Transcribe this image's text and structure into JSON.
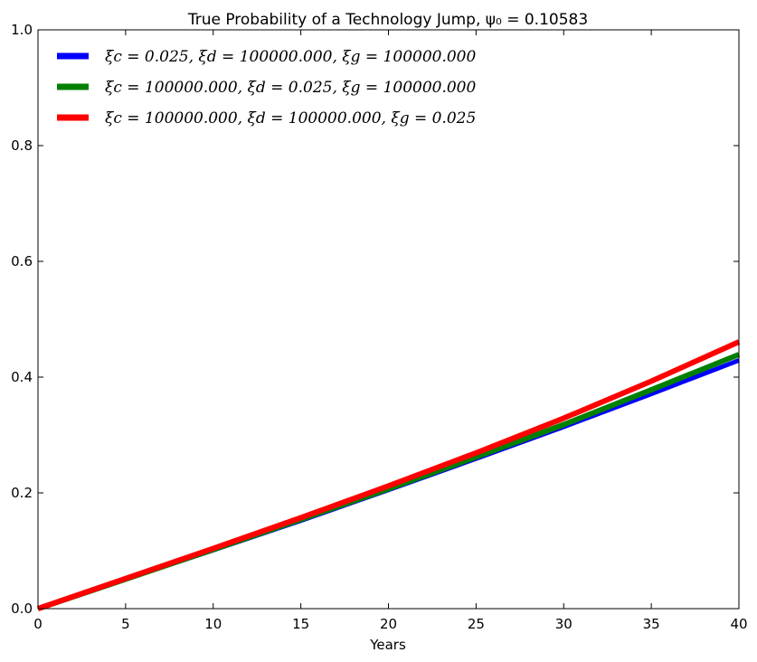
{
  "chart_data": {
    "type": "line",
    "title": "True Probability of a Technology Jump, ψ₀ = 0.10583",
    "xlabel": "Years",
    "ylabel": "",
    "xlim": [
      0,
      40
    ],
    "ylim": [
      0,
      1.0
    ],
    "xticks": [
      "0",
      "5",
      "10",
      "15",
      "20",
      "25",
      "30",
      "35",
      "40"
    ],
    "yticks": [
      "0.0",
      "0.2",
      "0.4",
      "0.6",
      "0.8",
      "1.0"
    ],
    "grid": false,
    "legend_position": "top-left",
    "x": [
      0,
      5,
      10,
      15,
      20,
      25,
      30,
      35,
      40
    ],
    "series": [
      {
        "name": "ξc = 0.025, ξd = 100000.000, ξg = 100000.000",
        "color": "#0000ff",
        "values": [
          0.0,
          0.051,
          0.101,
          0.152,
          0.205,
          0.259,
          0.314,
          0.371,
          0.429
        ]
      },
      {
        "name": "ξc = 100000.000, ξd = 0.025, ξg = 100000.000",
        "color": "#008000",
        "values": [
          0.0,
          0.051,
          0.102,
          0.154,
          0.207,
          0.262,
          0.318,
          0.378,
          0.439
        ]
      },
      {
        "name": "ξc = 100000.000, ξd = 100000.000, ξg = 0.025",
        "color": "#ff0000",
        "values": [
          0.0,
          0.052,
          0.104,
          0.157,
          0.212,
          0.269,
          0.329,
          0.393,
          0.461
        ]
      }
    ]
  }
}
